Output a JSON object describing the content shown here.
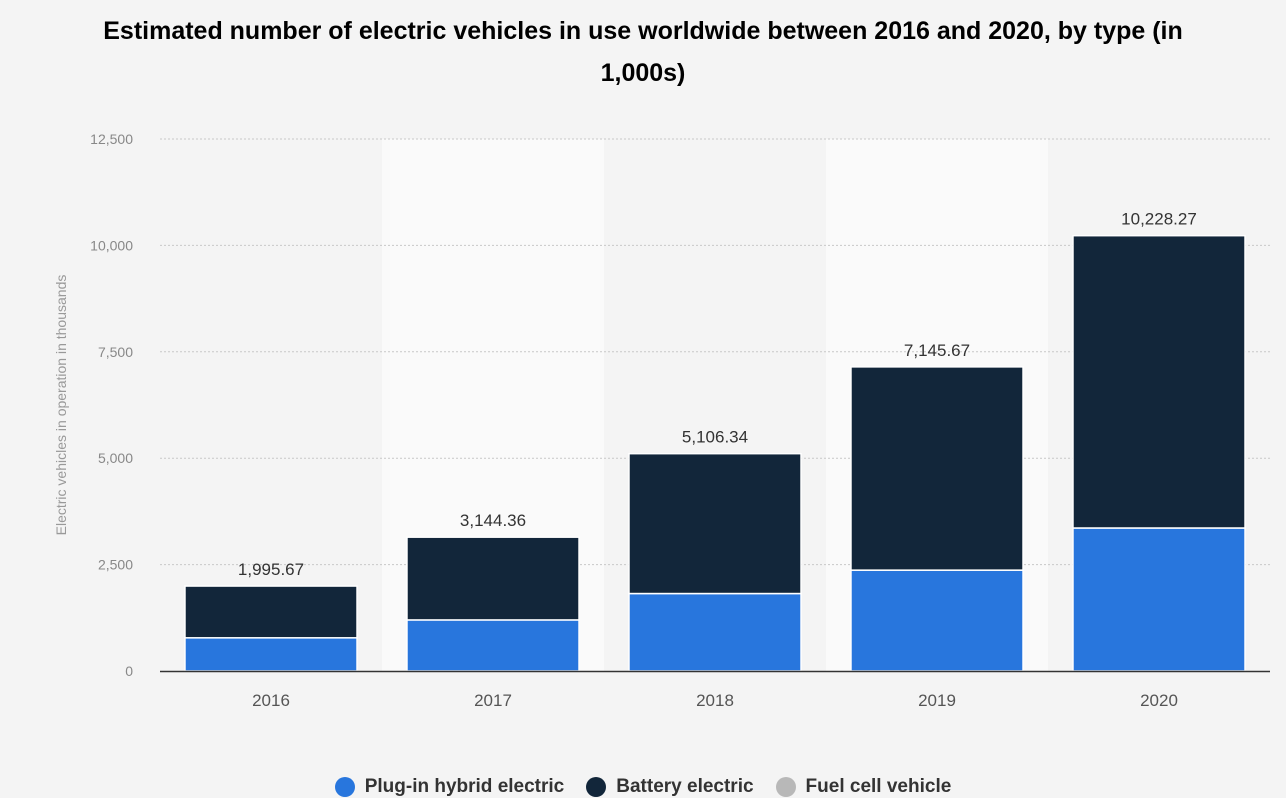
{
  "chart_data": {
    "type": "bar",
    "stacked": true,
    "title": "Estimated number of electric vehicles in use worldwide between 2016 and 2020, by type (in 1,000s)",
    "xlabel": "",
    "ylabel": "Electric vehicles in operation in thousands",
    "ylim": [
      0,
      12500
    ],
    "yticks": [
      0,
      2500,
      5000,
      7500,
      10000,
      12500
    ],
    "ytick_labels": [
      "0",
      "2,500",
      "5,000",
      "7,500",
      "10,000",
      "12,500"
    ],
    "grid": true,
    "legend_position": "bottom",
    "categories": [
      "2016",
      "2017",
      "2018",
      "2019",
      "2020"
    ],
    "series": [
      {
        "name": "Plug-in hybrid electric",
        "color": "#2876dd",
        "values": [
          780,
          1200,
          1820,
          2370,
          3360
        ]
      },
      {
        "name": "Battery electric",
        "color": "#12263a",
        "values": [
          1215.67,
          1944.36,
          3286.34,
          4775.67,
          6868.27
        ]
      },
      {
        "name": "Fuel cell vehicle",
        "color": "#b8b8b8",
        "values": [
          0,
          0,
          0,
          0,
          0
        ]
      }
    ],
    "totals": [
      1995.67,
      3144.36,
      5106.34,
      7145.67,
      10228.27
    ],
    "total_labels": [
      "1,995.67",
      "3,144.36",
      "5,106.34",
      "7,145.67",
      "10,228.27"
    ]
  }
}
